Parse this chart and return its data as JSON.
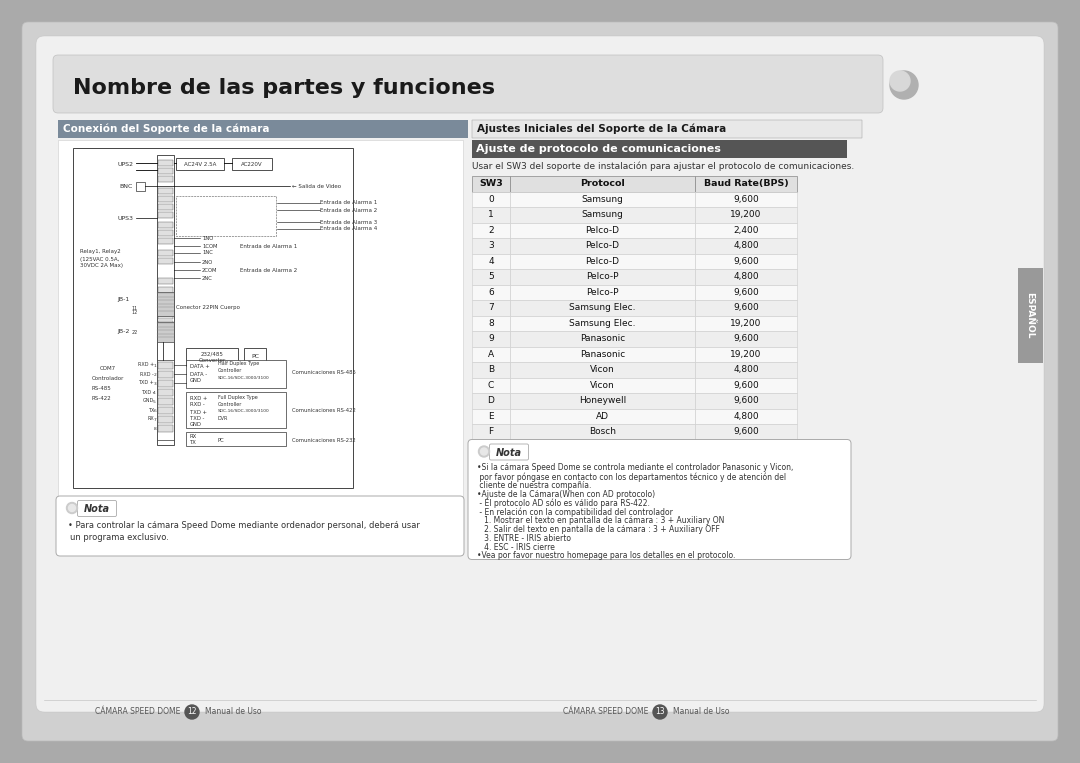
{
  "bg_outer": "#aaaaaa",
  "bg_page": "#c8c8c8",
  "bg_content": "#f2f2f2",
  "title_text": "Nombre de las partes y funciones",
  "title_color": "#1a1a1a",
  "left_section_header": "Conexión del Soporte de la cámara",
  "right_section_header": "Ajustes Iniciales del Soporte de la Cámara",
  "subsection_header": "Ajuste de protocolo de comunicaciones",
  "table_header": [
    "SW3",
    "Protocol",
    "Baud Rate(BPS)"
  ],
  "table_rows": [
    [
      "0",
      "Samsung",
      "9,600"
    ],
    [
      "1",
      "Samsung",
      "19,200"
    ],
    [
      "2",
      "Pelco-D",
      "2,400"
    ],
    [
      "3",
      "Pelco-D",
      "4,800"
    ],
    [
      "4",
      "Pelco-D",
      "9,600"
    ],
    [
      "5",
      "Pelco-P",
      "4,800"
    ],
    [
      "6",
      "Pelco-P",
      "9,600"
    ],
    [
      "7",
      "Samsung Elec.",
      "9,600"
    ],
    [
      "8",
      "Samsung Elec.",
      "19,200"
    ],
    [
      "9",
      "Panasonic",
      "9,600"
    ],
    [
      "A",
      "Panasonic",
      "19,200"
    ],
    [
      "B",
      "Vicon",
      "4,800"
    ],
    [
      "C",
      "Vicon",
      "9,600"
    ],
    [
      "D",
      "Honeywell",
      "9,600"
    ],
    [
      "E",
      "AD",
      "4,800"
    ],
    [
      "F",
      "Bosch",
      "9,600"
    ]
  ],
  "left_note_text": "Para controlar la cámara Speed Dome mediante ordenador personal, deberá usar\nun programa exclusivo.",
  "right_note_lines": [
    "•Si la cámara Speed Dome se controla mediante el controlador Panasonic y Vicon,",
    " por favor póngase en contacto con los departamentos técnico y de atención del",
    " cliente de nuestra compañía.",
    "•Ajuste de la Cámara(When con AD protocolo)",
    " - El protocolo AD sólo es válido para RS-422.",
    " - En relación con la compatibilidad del controlador",
    "   1. Mostrar el texto en pantalla de la cámara : 3 + Auxiliary ON",
    "   2. Salir del texto en pantalla de la cámara : 3 + Auxiliary OFF",
    "   3. ENTRE - IRIS abierto",
    "   4. ESC - IRIS cierre",
    "•Vea por favor nuestro homepage para los detalles en el protocolo."
  ],
  "espanol_text": "ESPAÑOL",
  "usar_text": "Usar el SW3 del soporte de instalación para ajustar el protocolo de comunicaciones."
}
